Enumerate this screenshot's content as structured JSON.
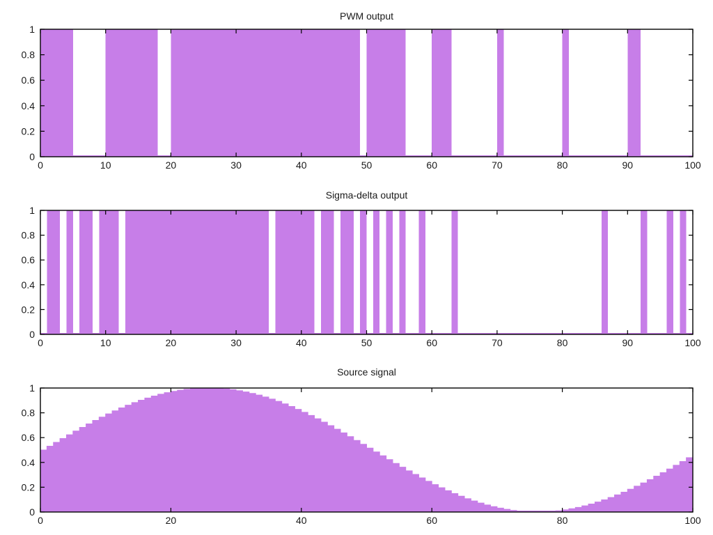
{
  "figure": {
    "background": "#ffffff",
    "fill_color": "#c77ee8",
    "axis_color": "#000000",
    "text_color": "#1a1a1a"
  },
  "chart_data": [
    {
      "id": "pwm",
      "title": "PWM output",
      "type": "bar",
      "subtype": "binary-pulse-train",
      "xlim": [
        0,
        100
      ],
      "ylim": [
        0,
        1
      ],
      "x_ticks": [
        0,
        10,
        20,
        30,
        40,
        50,
        60,
        70,
        80,
        90,
        100
      ],
      "y_ticks": [
        0,
        0.2,
        0.4,
        0.6,
        0.8,
        1
      ],
      "y_tick_labels": [
        "0",
        "0.2",
        "0.4",
        "0.6",
        "0.8",
        "1"
      ],
      "grid": false,
      "legend": "none",
      "pulse_level": 1,
      "pulses": [
        [
          0,
          5
        ],
        [
          10,
          18
        ],
        [
          20,
          49
        ],
        [
          50,
          56
        ],
        [
          60,
          63
        ],
        [
          70,
          71
        ],
        [
          80,
          81
        ],
        [
          90,
          92
        ]
      ]
    },
    {
      "id": "sigma-delta",
      "title": "Sigma-delta output",
      "type": "bar",
      "subtype": "binary-pulse-train",
      "xlim": [
        0,
        100
      ],
      "ylim": [
        0,
        1
      ],
      "x_ticks": [
        0,
        10,
        20,
        30,
        40,
        50,
        60,
        70,
        80,
        90,
        100
      ],
      "y_ticks": [
        0,
        0.2,
        0.4,
        0.6,
        0.8,
        1
      ],
      "y_tick_labels": [
        "0",
        "0.2",
        "0.4",
        "0.6",
        "0.8",
        "1"
      ],
      "grid": false,
      "legend": "none",
      "pulse_level": 1,
      "pulses": [
        [
          1,
          3
        ],
        [
          4,
          5
        ],
        [
          6,
          8
        ],
        [
          9,
          12
        ],
        [
          13,
          35
        ],
        [
          36,
          42
        ],
        [
          43,
          45
        ],
        [
          46,
          48
        ],
        [
          49,
          50
        ],
        [
          51,
          52
        ],
        [
          53,
          54
        ],
        [
          55,
          56
        ],
        [
          58,
          59
        ],
        [
          63,
          64
        ],
        [
          86,
          87
        ],
        [
          92,
          93
        ],
        [
          96,
          97
        ],
        [
          98,
          99
        ]
      ]
    },
    {
      "id": "source",
      "title": "Source signal",
      "type": "area",
      "subtype": "sine-staircase",
      "xlim": [
        0,
        100
      ],
      "ylim": [
        0,
        1
      ],
      "x_ticks": [
        0,
        20,
        40,
        60,
        80,
        100
      ],
      "y_ticks": [
        0,
        0.2,
        0.4,
        0.6,
        0.8,
        1
      ],
      "y_tick_labels": [
        "0",
        "0.2",
        "0.4",
        "0.6",
        "0.8",
        "1"
      ],
      "grid": false,
      "legend": "none",
      "generator": {
        "shape": "sine",
        "offset": 0.5,
        "amplitude": 0.5,
        "period": 101,
        "phase": 0,
        "samples": 100,
        "step_width": 1,
        "formula": "y[i] = 0.5 + 0.5*sin(2*pi*i/101), i = 0..99, drawn as 1-unit steps",
        "keypoints": {
          "start_value": 0.5,
          "peak_x": 25,
          "peak_value": 1.0,
          "trough_x": 76,
          "trough_value": 0.0,
          "end_value": 0.44
        }
      }
    }
  ]
}
